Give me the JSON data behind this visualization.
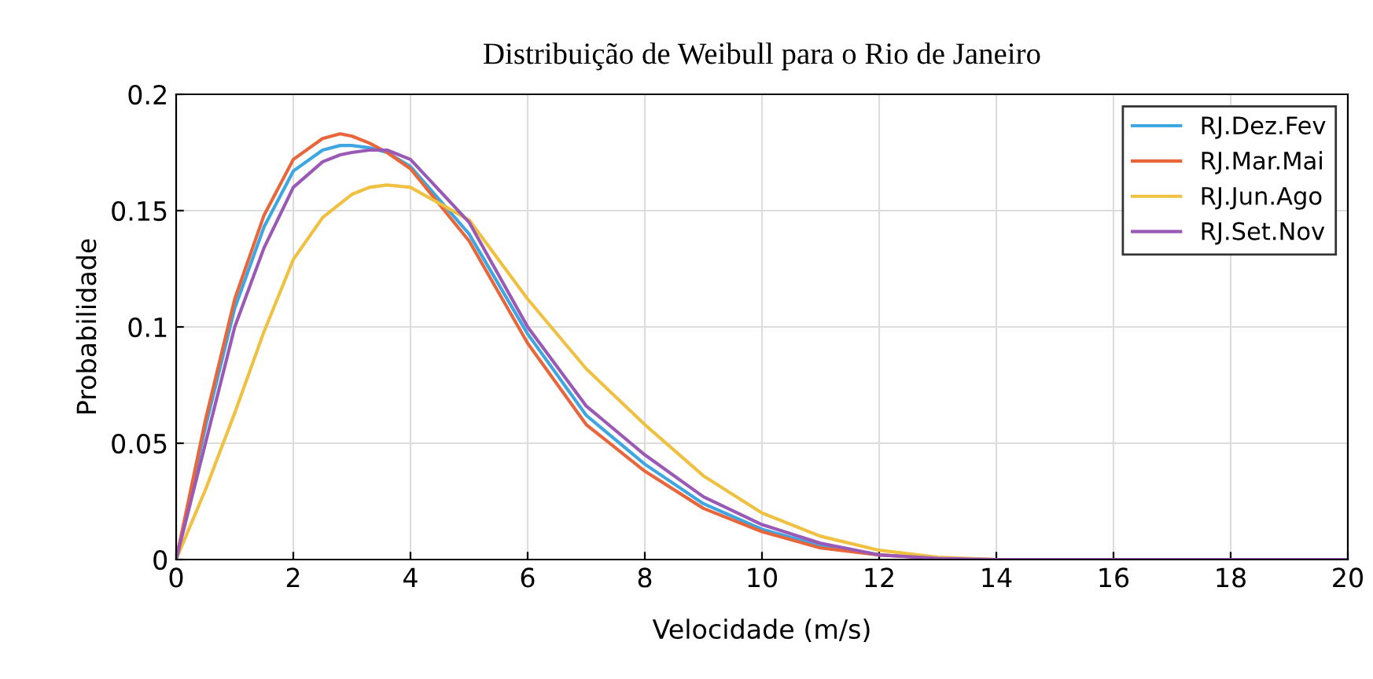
{
  "chart_data": {
    "type": "line",
    "title": "Distribuição de Weibull para o Rio de Janeiro",
    "xlabel": "Velocidade (m/s)",
    "ylabel": "Probabilidade",
    "x": [
      0,
      0.5,
      1,
      1.5,
      2,
      2.5,
      2.8,
      3,
      3.3,
      3.6,
      4,
      5,
      6,
      7,
      8,
      9,
      10,
      11,
      12,
      13,
      14,
      16,
      20
    ],
    "series": [
      {
        "name": "RJ.Dez.Fev",
        "color": "#3ea6e0",
        "values": [
          0,
          0.057,
          0.108,
          0.143,
          0.167,
          0.176,
          0.178,
          0.178,
          0.177,
          0.175,
          0.169,
          0.14,
          0.097,
          0.062,
          0.041,
          0.024,
          0.013,
          0.006,
          0.002,
          null,
          null,
          null,
          null
        ]
      },
      {
        "name": "RJ.Mar.Mai",
        "color": "#e8663a",
        "values": [
          0,
          0.06,
          0.112,
          0.148,
          0.172,
          0.181,
          0.183,
          0.182,
          0.179,
          0.175,
          0.168,
          0.137,
          0.093,
          0.058,
          0.038,
          0.022,
          0.012,
          0.005,
          0.002,
          0.0005,
          0,
          null,
          null
        ]
      },
      {
        "name": "RJ.Jun.Ago",
        "color": "#f0c040",
        "values": [
          0,
          0.03,
          0.063,
          0.098,
          0.129,
          0.147,
          0.153,
          0.157,
          0.16,
          0.161,
          0.16,
          0.146,
          0.112,
          0.082,
          0.058,
          0.036,
          0.02,
          0.01,
          0.004,
          0.001,
          0,
          0,
          0
        ]
      },
      {
        "name": "RJ.Set.Nov",
        "color": "#9b59b6",
        "values": [
          0,
          0.05,
          0.1,
          0.134,
          0.16,
          0.171,
          0.174,
          0.175,
          0.176,
          0.176,
          0.172,
          0.145,
          0.1,
          0.066,
          0.045,
          0.027,
          0.015,
          0.007,
          0.002,
          0.0005,
          0,
          0,
          0
        ]
      }
    ],
    "xlim": [
      0,
      20
    ],
    "ylim": [
      0,
      0.2
    ],
    "xticks": [
      0,
      2,
      4,
      6,
      8,
      10,
      12,
      14,
      16,
      18,
      20
    ],
    "yticks": [
      0,
      0.05,
      0.1,
      0.15,
      0.2
    ],
    "grid": true,
    "legend": "top right"
  }
}
